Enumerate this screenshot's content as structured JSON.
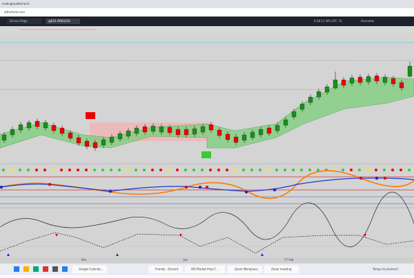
{
  "browser": {
    "tab_title": "tradinghealthcharts",
    "url": "althcharts.com"
  },
  "chart": {
    "tab": "Service Page",
    "symbol": "@ES1 DREGGIO",
    "time": "6:38:11 AM (UTC -5)",
    "menu": "Overview",
    "x_labels": [
      "Dec",
      "Jan",
      "17 Feb"
    ]
  },
  "taskbar": {
    "search": "Temps to plumine?",
    "items": [
      "Google Calenda...",
      "Friends - Discord",
      "OEI Market Prep F...",
      "Zoom Workplace",
      "Zoom meeting"
    ]
  }
}
